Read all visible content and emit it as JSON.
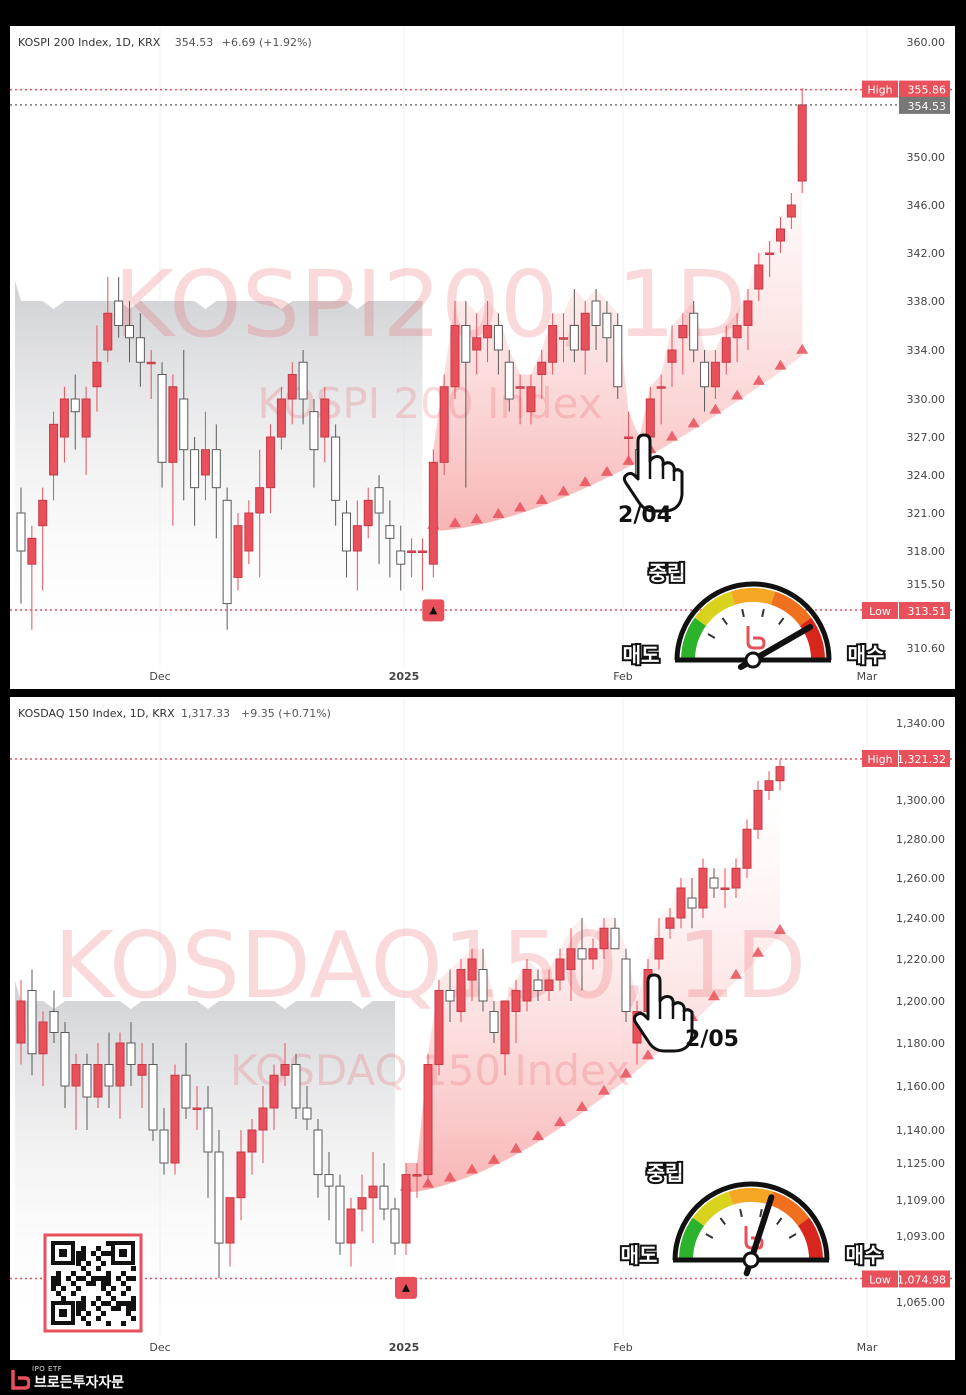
{
  "panels": [
    {
      "header": "KOSPI 200 Index, 1D, KRX",
      "last": "354.53",
      "change": "+6.69 (+1.92%)",
      "watermark_main": "KOSPI200, 1D",
      "watermark_sub": "KOSPI 200 Index",
      "annotation": "2/04",
      "high_tag": "High",
      "high_value": "355.86",
      "last_tag": "354.53",
      "low_tag": "Low",
      "low_value": "313.51",
      "gauge_top": "중립",
      "gauge_left": "매도",
      "gauge_right": "매수"
    },
    {
      "header": "KOSDAQ 150 Index, 1D, KRX",
      "last": "1,317.33",
      "change": "+9.35 (+0.71%)",
      "watermark_main": "KOSDAQ150, 1D",
      "watermark_sub": "KOSDAQ 150 Index",
      "annotation": "2/05",
      "high_tag": "High",
      "high_value": "1,321.32",
      "low_tag": "Low",
      "low_value": "1,074.98",
      "gauge_top": "중립",
      "gauge_left": "매도",
      "gauge_right": "매수"
    }
  ],
  "brand": {
    "small": "IPO ETF",
    "name": "브로든투자자문"
  },
  "colors": {
    "up": "#e8505b",
    "down": "#ffffff",
    "outline": "#5a5a5a",
    "band_gray": "#d8d9dc",
    "band_red": "#f8b4b4"
  },
  "chart_data": [
    {
      "type": "candlestick",
      "title": "KOSPI 200 Index, 1D, KRX",
      "x_ticks": [
        "Dec",
        "2025",
        "Feb",
        "Mar"
      ],
      "y_ticks": [
        360.0,
        350.0,
        346.0,
        342.0,
        338.0,
        334.0,
        330.0,
        327.0,
        324.0,
        321.0,
        318.0,
        315.5,
        310.6
      ],
      "high": 355.86,
      "low": 313.51,
      "last": 354.53,
      "ohlc": [
        [
          321,
          323,
          314,
          318
        ],
        [
          317,
          320,
          312,
          319
        ],
        [
          320,
          323,
          315,
          322
        ],
        [
          324,
          329,
          322,
          328
        ],
        [
          327,
          331,
          325,
          330
        ],
        [
          330,
          332,
          326,
          329
        ],
        [
          327,
          331,
          324,
          330
        ],
        [
          331,
          336,
          329,
          333
        ],
        [
          334,
          340,
          333,
          337
        ],
        [
          338,
          340,
          335,
          336
        ],
        [
          336,
          338,
          333,
          335
        ],
        [
          335,
          337,
          331,
          333
        ],
        [
          333,
          334,
          330,
          333
        ],
        [
          332,
          333,
          323,
          325
        ],
        [
          325,
          332,
          320,
          331
        ],
        [
          330,
          334,
          322,
          326
        ],
        [
          326,
          327,
          320,
          323
        ],
        [
          324,
          329,
          322,
          326
        ],
        [
          326,
          328,
          319,
          323
        ],
        [
          322,
          323,
          312,
          314
        ],
        [
          316,
          321,
          315,
          320
        ],
        [
          318,
          322,
          317,
          321
        ],
        [
          321,
          326,
          316,
          323
        ],
        [
          323,
          328,
          321,
          327
        ],
        [
          327,
          331,
          326,
          330
        ],
        [
          330,
          333,
          328,
          332
        ],
        [
          333,
          334,
          328,
          330
        ],
        [
          329,
          330,
          323,
          326
        ],
        [
          327,
          331,
          325,
          330
        ],
        [
          327,
          328,
          320,
          322
        ],
        [
          321,
          322,
          316,
          318
        ],
        [
          318,
          322,
          315,
          320
        ],
        [
          320,
          323,
          319,
          322
        ],
        [
          323,
          324,
          317,
          321
        ],
        [
          320,
          322,
          316,
          319
        ],
        [
          318,
          320,
          315,
          317
        ],
        [
          318,
          319,
          316,
          318
        ],
        [
          318,
          319,
          315,
          318
        ],
        [
          317,
          326,
          316,
          325
        ],
        [
          325,
          332,
          324,
          331
        ],
        [
          331,
          338,
          330,
          336
        ],
        [
          336,
          338,
          323,
          333
        ],
        [
          334,
          337,
          332,
          335
        ],
        [
          335,
          338,
          333,
          336
        ],
        [
          336,
          337,
          332,
          334
        ],
        [
          333,
          334,
          329,
          330
        ],
        [
          331,
          332,
          328,
          331
        ],
        [
          329,
          332,
          328,
          331
        ],
        [
          332,
          334,
          330,
          333
        ],
        [
          333,
          337,
          332,
          336
        ],
        [
          335,
          337,
          333,
          335
        ],
        [
          336,
          339,
          333,
          334
        ],
        [
          334,
          338,
          332,
          337
        ],
        [
          338,
          339,
          334,
          336
        ],
        [
          337,
          338,
          333,
          335
        ],
        [
          336,
          337,
          330,
          331
        ],
        [
          327,
          329,
          325,
          327
        ],
        [
          326,
          327,
          323,
          324
        ],
        [
          327,
          331,
          326,
          330
        ],
        [
          331,
          332,
          328,
          331
        ],
        [
          333,
          336,
          331,
          334
        ],
        [
          335,
          337,
          332,
          336
        ],
        [
          337,
          338,
          333,
          334
        ],
        [
          333,
          334,
          329,
          331
        ],
        [
          331,
          334,
          330,
          333
        ],
        [
          333,
          336,
          332,
          335
        ],
        [
          335,
          337,
          333,
          336
        ],
        [
          336,
          339,
          334,
          338
        ],
        [
          339,
          342,
          338,
          341
        ],
        [
          342,
          343,
          340,
          342
        ],
        [
          343,
          345,
          342,
          344
        ],
        [
          345,
          347,
          344,
          346
        ],
        [
          348,
          356,
          347,
          354.53
        ]
      ],
      "bands": {
        "gray_upper": 338,
        "red_lower_start": 321,
        "red_lower_end": 335
      },
      "markers": [
        {
          "type": "buy-signal",
          "index": 38
        }
      ]
    },
    {
      "type": "candlestick",
      "title": "KOSDAQ 150 Index, 1D, KRX",
      "x_ticks": [
        "Dec",
        "2025",
        "Feb",
        "Mar"
      ],
      "y_ticks": [
        1340.0,
        1300.0,
        1280.0,
        1260.0,
        1240.0,
        1220.0,
        1200.0,
        1180.0,
        1160.0,
        1140.0,
        1125.0,
        1109.0,
        1093.0,
        1065.0
      ],
      "high": 1321.32,
      "low": 1074.98,
      "last": 1317.33,
      "ohlc": [
        [
          1180,
          1210,
          1170,
          1200
        ],
        [
          1205,
          1215,
          1165,
          1175
        ],
        [
          1175,
          1195,
          1160,
          1190
        ],
        [
          1195,
          1205,
          1180,
          1185
        ],
        [
          1185,
          1190,
          1150,
          1160
        ],
        [
          1160,
          1175,
          1140,
          1170
        ],
        [
          1170,
          1175,
          1140,
          1155
        ],
        [
          1155,
          1180,
          1150,
          1170
        ],
        [
          1170,
          1185,
          1150,
          1160
        ],
        [
          1160,
          1185,
          1145,
          1180
        ],
        [
          1180,
          1190,
          1160,
          1170
        ],
        [
          1165,
          1180,
          1150,
          1170
        ],
        [
          1170,
          1180,
          1135,
          1140
        ],
        [
          1140,
          1150,
          1120,
          1125
        ],
        [
          1125,
          1170,
          1120,
          1165
        ],
        [
          1165,
          1180,
          1145,
          1150
        ],
        [
          1150,
          1160,
          1140,
          1150
        ],
        [
          1150,
          1160,
          1110,
          1130
        ],
        [
          1130,
          1140,
          1075,
          1090
        ],
        [
          1090,
          1110,
          1080,
          1110
        ],
        [
          1110,
          1140,
          1100,
          1130
        ],
        [
          1130,
          1145,
          1120,
          1140
        ],
        [
          1140,
          1160,
          1125,
          1150
        ],
        [
          1150,
          1170,
          1140,
          1165
        ],
        [
          1165,
          1180,
          1160,
          1170
        ],
        [
          1170,
          1175,
          1145,
          1150
        ],
        [
          1150,
          1160,
          1140,
          1145
        ],
        [
          1140,
          1145,
          1110,
          1120
        ],
        [
          1120,
          1130,
          1100,
          1115
        ],
        [
          1115,
          1120,
          1085,
          1090
        ],
        [
          1090,
          1110,
          1080,
          1105
        ],
        [
          1105,
          1120,
          1095,
          1110
        ],
        [
          1110,
          1130,
          1090,
          1115
        ],
        [
          1115,
          1125,
          1100,
          1105
        ],
        [
          1105,
          1110,
          1085,
          1090
        ],
        [
          1090,
          1125,
          1085,
          1120
        ],
        [
          1120,
          1125,
          1110,
          1120
        ],
        [
          1120,
          1175,
          1115,
          1170
        ],
        [
          1170,
          1210,
          1165,
          1205
        ],
        [
          1205,
          1215,
          1190,
          1200
        ],
        [
          1195,
          1220,
          1190,
          1215
        ],
        [
          1210,
          1225,
          1200,
          1220
        ],
        [
          1215,
          1225,
          1195,
          1200
        ],
        [
          1195,
          1200,
          1180,
          1185
        ],
        [
          1175,
          1200,
          1165,
          1200
        ],
        [
          1195,
          1210,
          1180,
          1205
        ],
        [
          1200,
          1220,
          1195,
          1215
        ],
        [
          1210,
          1215,
          1200,
          1205
        ],
        [
          1205,
          1215,
          1200,
          1210
        ],
        [
          1210,
          1225,
          1205,
          1220
        ],
        [
          1215,
          1235,
          1200,
          1225
        ],
        [
          1225,
          1240,
          1205,
          1220
        ],
        [
          1220,
          1230,
          1215,
          1225
        ],
        [
          1225,
          1240,
          1220,
          1235
        ],
        [
          1235,
          1240,
          1225,
          1225
        ],
        [
          1220,
          1225,
          1190,
          1195
        ],
        [
          1180,
          1200,
          1170,
          1195
        ],
        [
          1195,
          1220,
          1190,
          1215
        ],
        [
          1220,
          1240,
          1215,
          1230
        ],
        [
          1235,
          1245,
          1230,
          1240
        ],
        [
          1240,
          1260,
          1235,
          1255
        ],
        [
          1250,
          1260,
          1235,
          1245
        ],
        [
          1245,
          1270,
          1240,
          1265
        ],
        [
          1260,
          1265,
          1250,
          1255
        ],
        [
          1255,
          1265,
          1245,
          1255
        ],
        [
          1255,
          1270,
          1250,
          1265
        ],
        [
          1265,
          1290,
          1260,
          1285
        ],
        [
          1285,
          1310,
          1280,
          1305
        ],
        [
          1305,
          1315,
          1300,
          1310
        ],
        [
          1310,
          1321,
          1305,
          1317.33
        ]
      ],
      "bands": {
        "gray_upper": 1200,
        "red_lower_start": 1120,
        "red_lower_end": 1240
      },
      "markers": [
        {
          "type": "buy-signal",
          "index": 35
        }
      ]
    }
  ]
}
